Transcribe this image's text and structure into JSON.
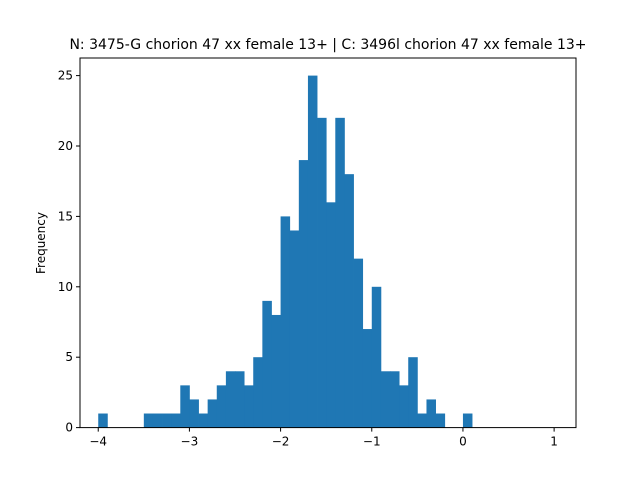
{
  "chart_data": {
    "type": "bar",
    "subtype": "histogram",
    "title": "N: 3475-G chorion 47 xx female 13+ | C: 3496l chorion 47 xx female 13+",
    "xlabel": "",
    "ylabel": "Frequency",
    "xlim": [
      -4.2,
      1.24
    ],
    "ylim": [
      0,
      26.25
    ],
    "xticks": [
      -4,
      -3,
      -2,
      -1,
      0,
      1
    ],
    "xtick_labels": [
      "−4",
      "−3",
      "−2",
      "−1",
      "0",
      "1"
    ],
    "yticks": [
      0,
      5,
      10,
      15,
      20,
      25
    ],
    "ytick_labels": [
      "0",
      "5",
      "10",
      "15",
      "20",
      "25"
    ],
    "bar_color": "#1f77b4",
    "grid": false,
    "bin_start": -4.0,
    "bin_width": 0.1,
    "counts": [
      1,
      0,
      0,
      0,
      0,
      1,
      1,
      1,
      1,
      3,
      2,
      1,
      2,
      3,
      4,
      4,
      3,
      5,
      9,
      8,
      15,
      14,
      19,
      25,
      22,
      16,
      22,
      18,
      12,
      7,
      10,
      4,
      4,
      3,
      5,
      1,
      2,
      1,
      0,
      0,
      1
    ]
  }
}
